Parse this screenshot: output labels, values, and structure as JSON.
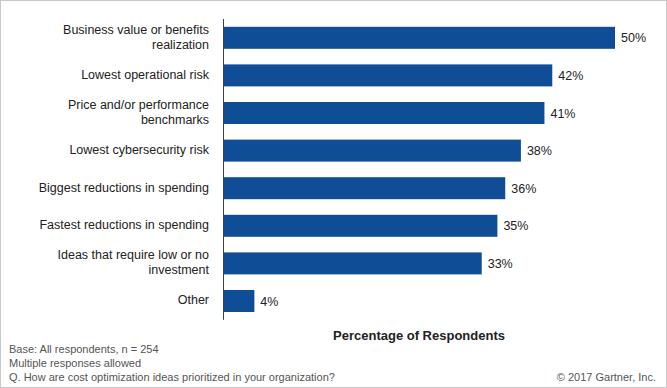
{
  "chart_data": {
    "type": "bar",
    "orientation": "horizontal",
    "categories": [
      "Business value or benefits realization",
      "Lowest operational risk",
      "Price and/or performance benchmarks",
      "Lowest cybersecurity risk",
      "Biggest reductions in spending",
      "Fastest reductions in spending",
      "Ideas that require low or no investment",
      "Other"
    ],
    "values": [
      50,
      42,
      41,
      38,
      36,
      35,
      33,
      4
    ],
    "value_labels": [
      "50%",
      "42%",
      "41%",
      "38%",
      "36%",
      "35%",
      "33%",
      "4%"
    ],
    "color": "#0f4d97",
    "xlim": [
      0,
      50
    ],
    "x_label": "Percentage of Respondents",
    "data_labels": true,
    "tick_labels": false,
    "grid": false,
    "notes": [
      "Base: All respondents, n = 254",
      "Multiple responses allowed",
      "Q. How are cost optimization ideas prioritized in your organization?"
    ],
    "source": "© 2017 Gartner, Inc."
  }
}
